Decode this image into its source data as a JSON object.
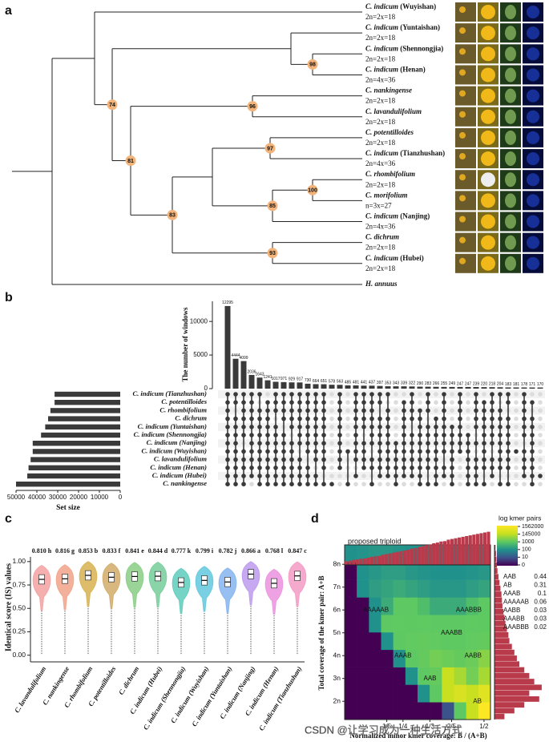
{
  "panel_labels": [
    "a",
    "b",
    "c",
    "d"
  ],
  "watermark": "CSDN @让学习成为一种生活方式",
  "tree": {
    "children": [
      {
        "children": [
          {
            "name": "C. indicum",
            "place": "(Wuyishan)",
            "ploidy": "2n=2x=18"
          },
          {
            "support": 74,
            "children": [
              {
                "children": [
                  {
                    "name": "C. indicum",
                    "place": "(Yuntaishan)",
                    "ploidy": "2n=2x=18"
                  },
                  {
                    "support": 98,
                    "children": [
                      {
                        "name": "C. indicum",
                        "place": "(Shennongjia)",
                        "ploidy": "2n=2x=18"
                      },
                      {
                        "name": "C. indicum",
                        "place": "(Henan)",
                        "ploidy": "2n=4x=36"
                      }
                    ]
                  }
                ]
              },
              {
                "support": 81,
                "children": [
                  {
                    "support": 96,
                    "children": [
                      {
                        "name": "C. nankingense",
                        "ploidy": "2n=2x=18"
                      },
                      {
                        "name": "C. lavandulifolium",
                        "ploidy": "2n=2x=18"
                      }
                    ]
                  },
                  {
                    "support": 83,
                    "children": [
                      {
                        "children": [
                          {
                            "support": 97,
                            "children": [
                              {
                                "name": "C. potentilloides",
                                "ploidy": "2n=2x=18"
                              },
                              {
                                "name": "C. indicum",
                                "place": "(Tianzhushan)",
                                "ploidy": "2n=4x=36"
                              }
                            ]
                          },
                          {
                            "support": 85,
                            "children": [
                              {
                                "support": 100,
                                "children": [
                                  {
                                    "name": "C. rhombifolium",
                                    "ploidy": "2n=2x=18"
                                  },
                                  {
                                    "name": "C. morifolium",
                                    "ploidy": "n=3x=27"
                                  }
                                ]
                              },
                              {
                                "name": "C. indicum",
                                "place": "(Nanjing)",
                                "ploidy": "2n=4x=36"
                              }
                            ]
                          }
                        ]
                      },
                      {
                        "support": 93,
                        "children": [
                          {
                            "name": "C. dichrum",
                            "ploidy": "2n=2x=18"
                          },
                          {
                            "name": "C. indicum",
                            "place": "(Hubei)",
                            "ploidy": "2n=2x=18"
                          }
                        ]
                      }
                    ]
                  }
                ]
              }
            ]
          }
        ]
      },
      {
        "name": "H. annuus"
      }
    ]
  },
  "chart_data": [
    {
      "type": "upset",
      "y_label": "The number of windows",
      "color": "#3a3a3a",
      "values": [
        12295,
        4444,
        4099,
        2036,
        1643,
        1241,
        1017,
        971,
        929,
        917,
        730,
        664,
        651,
        578,
        563,
        485,
        481,
        441,
        437,
        397,
        353,
        343,
        339,
        322,
        290,
        283,
        266,
        255,
        249,
        247,
        247,
        239,
        220,
        218,
        204,
        183,
        181,
        178,
        171,
        170
      ],
      "ylim": [
        0,
        13000
      ],
      "yticks": [
        0,
        5000,
        10000
      ],
      "sets": [
        "C. indicum (Tianzhushan)",
        "C. potentilloides",
        "C. rhombifolium",
        "C. dichrum",
        "C. indicum (Yuntaishan)",
        "C. indicum (Shennongjia)",
        "C. indicum (Nanjing)",
        "C. indicum (Wuyishan)",
        "C. lavandulifolium",
        "C. indicum (Henan)",
        "C. indicum (Hubei)",
        "C. nankingense"
      ],
      "set_sizes": [
        31500,
        31500,
        33500,
        34600,
        36000,
        38000,
        42000,
        42000,
        43000,
        44000,
        44600,
        50000
      ],
      "set_size_label": "Set size",
      "xlim": [
        0,
        50000
      ],
      "xticks": [
        50000,
        40000,
        30000,
        20000,
        10000,
        0
      ],
      "memberships": [
        [
          0,
          1,
          2,
          3,
          4,
          5,
          6,
          7,
          8,
          9,
          10,
          11
        ],
        [
          0,
          1,
          3,
          4,
          5,
          6,
          7,
          8,
          9,
          10,
          11
        ],
        [
          0,
          1,
          2,
          3,
          4,
          5,
          7,
          8,
          9,
          10,
          11
        ],
        [
          0,
          1,
          2,
          3,
          4,
          5,
          6,
          7,
          8,
          9,
          10
        ],
        [
          0,
          2,
          3,
          4,
          5,
          6,
          7,
          8,
          9,
          10,
          11
        ],
        [
          1,
          2,
          3,
          4,
          5,
          6,
          7,
          8,
          9,
          10,
          11
        ],
        [
          0,
          1,
          2,
          4,
          5,
          6,
          7,
          8,
          9,
          10,
          11
        ],
        [
          0,
          1,
          2,
          3,
          5,
          6,
          7,
          8,
          9,
          10,
          11
        ],
        [
          0,
          1,
          2,
          3,
          4,
          6,
          7,
          8,
          9,
          10,
          11
        ],
        [
          0,
          1,
          2,
          3,
          4,
          5,
          6,
          8,
          9,
          10,
          11
        ],
        [
          0,
          1,
          2,
          3,
          4,
          5,
          6,
          7,
          9,
          10,
          11
        ],
        [
          0,
          1,
          2,
          3,
          4,
          5,
          6,
          7,
          8,
          10,
          11
        ],
        [
          0,
          1,
          2,
          3,
          4,
          5,
          6,
          7,
          8,
          9,
          11
        ],
        [
          11
        ],
        [
          0,
          1,
          2,
          3,
          4,
          5,
          6,
          7,
          8,
          9
        ],
        [
          7,
          11
        ],
        [
          0,
          1,
          2,
          3,
          4,
          5,
          6,
          7,
          8,
          10
        ],
        [
          0,
          1,
          2,
          3,
          4,
          6,
          7,
          8,
          9
        ],
        [
          0,
          1,
          2,
          3,
          4,
          5,
          6,
          8,
          9,
          11
        ],
        [
          0,
          1,
          3,
          4,
          5,
          6,
          7,
          8,
          9,
          10
        ],
        [
          0,
          2,
          3,
          4,
          5,
          6,
          7,
          8,
          9,
          10
        ],
        [
          6,
          7,
          8,
          9,
          10,
          11
        ],
        [
          1,
          2,
          3,
          4,
          5,
          6,
          7,
          8,
          9,
          10
        ],
        [
          0,
          1,
          2,
          3,
          5,
          6,
          7,
          8,
          9,
          10
        ],
        [
          2,
          3,
          4,
          5,
          6,
          7,
          8,
          9,
          10,
          11
        ],
        [
          0,
          1,
          2,
          4,
          5,
          6,
          7,
          8,
          9,
          11
        ],
        [
          3,
          4,
          5,
          6,
          7,
          8,
          9,
          10,
          11
        ],
        [
          0,
          1,
          2,
          3,
          4,
          5,
          6,
          7,
          9,
          10
        ],
        [
          4,
          5,
          6,
          7,
          8,
          9,
          10,
          11
        ],
        [
          0,
          1,
          2,
          3,
          4,
          5,
          6,
          7
        ],
        [
          5,
          6,
          7,
          8,
          9,
          10,
          11
        ],
        [
          0,
          1,
          2,
          3,
          4,
          6,
          8,
          9,
          10,
          11
        ],
        [
          1,
          2,
          3,
          4,
          5,
          6,
          7,
          8,
          9,
          11
        ],
        [
          0,
          1,
          2,
          3,
          4,
          5,
          6,
          8,
          9,
          10
        ],
        [
          0,
          2,
          3,
          4,
          5,
          6,
          7,
          8,
          9,
          11
        ],
        [
          0,
          1,
          3,
          4,
          5,
          6,
          7,
          8,
          9,
          11
        ],
        [
          7
        ],
        [
          0,
          1,
          2,
          3,
          4,
          5,
          7,
          8,
          9,
          10
        ],
        [
          1,
          3,
          4,
          5,
          6,
          7,
          8,
          9,
          10,
          11
        ],
        [
          10
        ]
      ]
    },
    {
      "type": "violin",
      "y_label": "Identical score (IS) values",
      "categories": [
        "C. lavandulifolium",
        "C. nankingense",
        "C. rhombifolium",
        "C. potentilloides",
        "C. dichrum",
        "C. indicum (Hubei)",
        "C. indicum (Shennongjia)",
        "C. indicum (Wuyishan)",
        "C. indicum (Yuntaishan)",
        "C. indicum (Nanjing)",
        "C. indicum (Henan)",
        "C. indicum (Tianzhushan)"
      ],
      "values": [
        0.81,
        0.816,
        0.853,
        0.833,
        0.841,
        0.844,
        0.777,
        0.799,
        0.782,
        0.866,
        0.768,
        0.847
      ],
      "value_labels": [
        "0.810 h",
        "0.816 g",
        "0.853 b",
        "0.833 f",
        "0.841 e",
        "0.844 d",
        "0.777 k",
        "0.799 i",
        "0.782 j",
        "0.866 a",
        "0.768 l",
        "0.847 c"
      ],
      "colors": [
        "#f4a6a6",
        "#f2a890",
        "#d9b65a",
        "#d4b070",
        "#8fd08c",
        "#7cd0a0",
        "#66cfc0",
        "#6ccbe0",
        "#8cb8f0",
        "#c0a0f0",
        "#ec98e0",
        "#f4a0c8"
      ],
      "ylim": [
        -0.02,
        1.05
      ],
      "yticks": [
        {
          "value": 0,
          "label": "0.00"
        },
        {
          "value": 0.25,
          "label": "0.25"
        },
        {
          "value": 0.5,
          "label": "0.50"
        },
        {
          "value": 0.75,
          "label": "0.75"
        },
        {
          "value": 1,
          "label": "1.00"
        }
      ]
    },
    {
      "type": "heatmap",
      "title": "proposed triploid",
      "colorbar_title": "log kmer pairs",
      "colorbar_ticks": [
        0,
        10,
        100,
        1000,
        145000,
        1562000
      ],
      "colorbar_colors": [
        "#440154",
        "#3b528b",
        "#21918c",
        "#5ec962",
        "#c8e020",
        "#fde725"
      ],
      "x_label": "Normalized minor kmer coverage: B / (A+B)",
      "y_label": "Total coverage of the kmer pair: A+B",
      "xlim": [
        0.07,
        0.52
      ],
      "xticks": [
        {
          "value": 0.2,
          "label": "1/5"
        },
        {
          "value": 0.25,
          "label": "1/4"
        },
        {
          "value": 0.333,
          "label": "1/3"
        },
        {
          "value": 0.4,
          "label": "2/5"
        },
        {
          "value": 0.5,
          "label": "1/2"
        }
      ],
      "ylim": [
        1.2,
        8.85
      ],
      "yticks": [
        {
          "value": 2,
          "label": "2n"
        },
        {
          "value": 3,
          "label": "3n"
        },
        {
          "value": 4,
          "label": "4n"
        },
        {
          "value": 5,
          "label": "5n"
        },
        {
          "value": 6,
          "label": "6n"
        },
        {
          "value": 7,
          "label": "7n"
        },
        {
          "value": 8,
          "label": "8n"
        }
      ],
      "z": [
        [
          0,
          0,
          0,
          0,
          0,
          0,
          0,
          0,
          10,
          1000,
          145000,
          1562000
        ],
        [
          0,
          0,
          0,
          0,
          0,
          0,
          100,
          1000,
          145000,
          600000,
          145000,
          800000
        ],
        [
          0,
          0,
          0,
          0,
          0,
          100,
          1000,
          10000,
          145000,
          100000,
          30000,
          100000
        ],
        [
          0,
          0,
          0,
          0,
          100,
          1000,
          10000,
          30000,
          20000,
          10000,
          20000,
          60000
        ],
        [
          0,
          0,
          0,
          100,
          1000,
          5000,
          8000,
          5000,
          3000,
          3000,
          5000,
          10000
        ],
        [
          0,
          0,
          100,
          1000,
          2000,
          3000,
          2000,
          1000,
          1000,
          1000,
          2000,
          3000
        ],
        [
          0,
          0,
          100,
          500,
          1000,
          1000,
          800,
          500,
          500,
          500,
          800,
          1000
        ],
        [
          0,
          100,
          300,
          400,
          500,
          400,
          300,
          200,
          200,
          200,
          300,
          400
        ],
        [
          0,
          100,
          200,
          300,
          300,
          200,
          150,
          100,
          100,
          100,
          150,
          200
        ],
        [
          100,
          150,
          200,
          200,
          150,
          100,
          100,
          100,
          100,
          100,
          100,
          150
        ]
      ],
      "annotations": [
        "AB",
        "AAB",
        "AAAB",
        "AABB",
        "AAABB",
        "AAAAAB",
        "AAABBB"
      ],
      "proportions": {
        "labels": [
          "AAB",
          "AB",
          "AAAB",
          "AAAAAB",
          "AABB",
          "AAABB",
          "AAABBB"
        ],
        "values": [
          0.44,
          0.31,
          0.1,
          0.06,
          0.03,
          0.03,
          0.02
        ]
      },
      "hist_color": "#b83a4b",
      "top_histogram": [
        10,
        12,
        14,
        15,
        17,
        18,
        20,
        22,
        24,
        25,
        28,
        30,
        32,
        34,
        36,
        38,
        40,
        42,
        45,
        47,
        50,
        52,
        55,
        57,
        60,
        62,
        65,
        66,
        70,
        72,
        74,
        76,
        78,
        80,
        82,
        84,
        86,
        88,
        90,
        92
      ],
      "right_histogram": [
        2,
        3,
        4,
        5,
        6,
        8,
        10,
        12,
        14,
        15,
        16,
        18,
        20,
        22,
        25,
        28,
        30,
        35,
        40,
        45,
        50,
        60,
        70,
        80,
        95,
        70,
        90,
        60,
        40,
        20
      ]
    }
  ]
}
